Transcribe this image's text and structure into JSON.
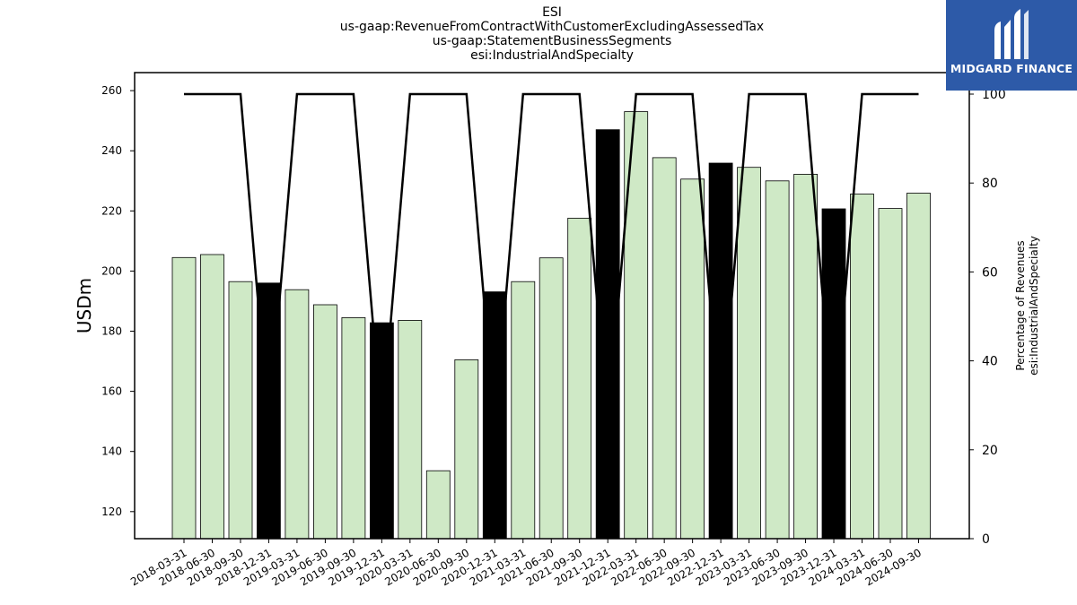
{
  "title_lines": [
    "ESI",
    "us-gaap:RevenueFromContractWithCustomerExcludingAssessedTax",
    "us-gaap:StatementBusinessSegments",
    "esi:IndustrialAndSpecialty"
  ],
  "logo": {
    "text": "MIDGARD FINANCE",
    "icon": "midgard-logo-icon",
    "background": "#2d5aa8"
  },
  "chart_data": {
    "type": "bar",
    "categories": [
      "2018-03-31",
      "2018-06-30",
      "2018-09-30",
      "2018-12-31",
      "2019-03-31",
      "2019-06-30",
      "2019-09-30",
      "2019-12-31",
      "2020-03-31",
      "2020-06-30",
      "2020-09-30",
      "2020-12-31",
      "2021-03-31",
      "2021-06-30",
      "2021-09-30",
      "2021-12-31",
      "2022-03-31",
      "2022-06-30",
      "2022-09-30",
      "2022-12-31",
      "2023-03-31",
      "2023-06-30",
      "2023-09-30",
      "2023-12-31",
      "2024-03-31",
      "2024-06-30",
      "2024-09-30"
    ],
    "values": [
      204.5,
      205.5,
      196.5,
      196.0,
      193.8,
      188.8,
      184.5,
      182.8,
      183.6,
      133.6,
      170.5,
      193.1,
      196.5,
      204.4,
      217.6,
      247.0,
      253.0,
      237.7,
      230.6,
      235.9,
      234.5,
      230.0,
      232.2,
      220.7,
      225.6,
      220.8,
      225.9
    ],
    "bar_colors": {
      "regular": "#cfe9c6",
      "year_end": "#000000",
      "edge": "#000000"
    },
    "ylabel": "USDm",
    "ylim": [
      111.0,
      266.0
    ],
    "yticks": [
      120,
      140,
      160,
      180,
      200,
      220,
      240,
      260
    ],
    "secondary": {
      "type": "line",
      "ylabel_lines": [
        "Percentage of Revenues",
        "esi:IndustrialAndSpecialty"
      ],
      "values": [
        100,
        100,
        100,
        25,
        100,
        100,
        100,
        25,
        100,
        100,
        100,
        25,
        100,
        100,
        100,
        25,
        100,
        100,
        100,
        25,
        100,
        100,
        100,
        25,
        100,
        100,
        100
      ],
      "ylim": [
        0,
        100
      ],
      "yticks": [
        0,
        20,
        40,
        60,
        80,
        100
      ],
      "color": "#000000"
    },
    "grid": false
  }
}
